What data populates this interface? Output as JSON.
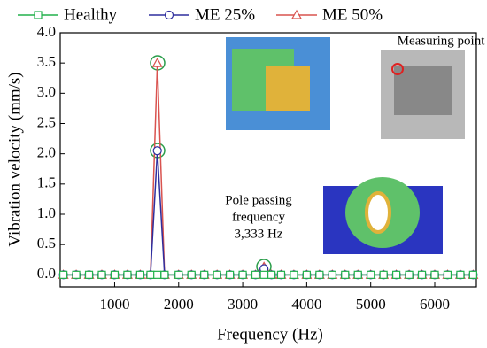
{
  "chart_data": {
    "type": "line",
    "x_label": "Frequency (Hz)",
    "y_label": "Vibration velocity (mm/s)",
    "x": [
      200,
      400,
      600,
      800,
      1000,
      1200,
      1400,
      1560,
      1667,
      1780,
      2000,
      2200,
      2400,
      2600,
      2800,
      3000,
      3200,
      3333,
      3450,
      3600,
      3800,
      4000,
      4200,
      4400,
      4600,
      4800,
      5000,
      5200,
      5400,
      5600,
      5800,
      6000,
      6200,
      6400,
      6600
    ],
    "series": [
      {
        "name": "Healthy",
        "color": "#22b14c",
        "marker": "square",
        "values": [
          0,
          0,
          0,
          0,
          0,
          0,
          0,
          0,
          0,
          0,
          0,
          0,
          0,
          0,
          0,
          0,
          0,
          0,
          0,
          0,
          0,
          0,
          0,
          0,
          0,
          0,
          0,
          0,
          0,
          0,
          0,
          0,
          0,
          0,
          0
        ]
      },
      {
        "name": "ME 25%",
        "color": "#2e2e9e",
        "marker": "circle",
        "values": [
          0,
          0,
          0,
          0,
          0,
          0,
          0,
          0,
          2.05,
          0,
          0,
          0,
          0,
          0,
          0,
          0,
          0,
          0.1,
          0,
          0,
          0,
          0,
          0,
          0,
          0,
          0,
          0,
          0,
          0,
          0,
          0,
          0,
          0,
          0,
          0
        ]
      },
      {
        "name": "ME 50%",
        "color": "#d9534f",
        "marker": "triangle",
        "values": [
          0,
          0,
          0,
          0,
          0,
          0,
          0,
          0,
          3.5,
          0,
          0,
          0,
          0,
          0,
          0,
          0,
          0,
          0.13,
          0,
          0,
          0,
          0,
          0,
          0,
          0,
          0,
          0,
          0,
          0,
          0,
          0,
          0,
          0,
          0,
          0
        ]
      }
    ],
    "xlim": [
      150,
      6650
    ],
    "ylim": [
      -0.2,
      4.0
    ],
    "xticks": [
      1000,
      2000,
      3000,
      4000,
      5000,
      6000
    ],
    "yticks": [
      {
        "value": 0,
        "label": "0.0"
      },
      0.5,
      {
        "value": 1,
        "label": "1.0"
      },
      1.5,
      {
        "value": 2,
        "label": "2.0"
      },
      2.5,
      {
        "value": 3,
        "label": "3.0"
      },
      3.5,
      {
        "value": 4,
        "label": "4.0"
      }
    ],
    "annotations": [
      "Measuring point",
      "Pole passing",
      "frequency",
      "3,333 Hz"
    ]
  }
}
